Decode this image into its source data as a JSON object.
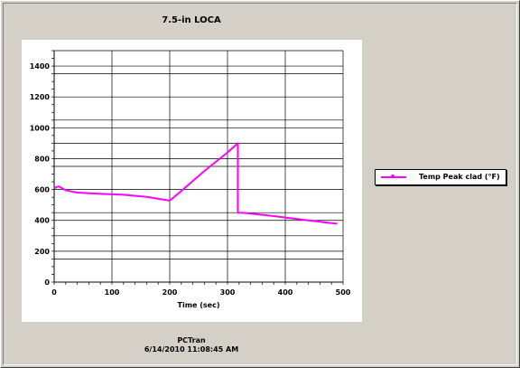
{
  "chart_data": {
    "type": "line",
    "title": "7.5-in LOCA",
    "xlabel": "Time (sec)",
    "ylabel": "",
    "xlim": [
      0,
      500
    ],
    "ylim": [
      0,
      1500
    ],
    "x_ticks": [
      0,
      100,
      200,
      300,
      400,
      500
    ],
    "y_ticks": [
      0,
      200,
      400,
      600,
      800,
      1000,
      1200,
      1400
    ],
    "grid": true,
    "legend_position": "right",
    "series": [
      {
        "name": "Temp Peak clad (°F)",
        "color": "#ff00ff",
        "points": [
          [
            0,
            605
          ],
          [
            3,
            615
          ],
          [
            8,
            620
          ],
          [
            12,
            612
          ],
          [
            20,
            595
          ],
          [
            40,
            580
          ],
          [
            80,
            572
          ],
          [
            120,
            566
          ],
          [
            160,
            552
          ],
          [
            200,
            528
          ],
          [
            220,
            590
          ],
          [
            260,
            720
          ],
          [
            300,
            840
          ],
          [
            318,
            900
          ],
          [
            318,
            450
          ],
          [
            330,
            448
          ],
          [
            380,
            428
          ],
          [
            440,
            400
          ],
          [
            490,
            378
          ]
        ]
      }
    ]
  },
  "footer": {
    "app_name": "PCTran",
    "timestamp": "6/14/2010 11:08:45 AM"
  }
}
